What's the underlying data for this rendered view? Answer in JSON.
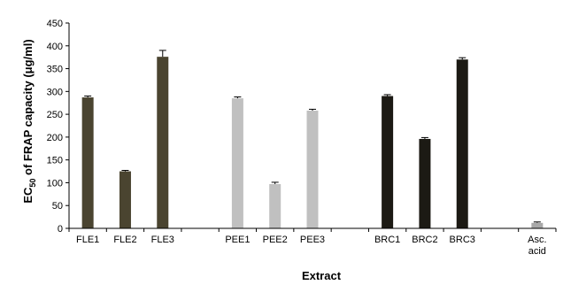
{
  "chart_data": {
    "type": "bar",
    "categories": [
      "FLE1",
      "FLE2",
      "FLE3",
      "PEE1",
      "PEE2",
      "PEE3",
      "BRC1",
      "BRC2",
      "BRC3",
      "Asc. acid"
    ],
    "category_lines": [
      [
        "FLE1"
      ],
      [
        "FLE2"
      ],
      [
        "FLE3"
      ],
      [
        "PEE1"
      ],
      [
        "PEE2"
      ],
      [
        "PEE3"
      ],
      [
        "BRC1"
      ],
      [
        "BRC2"
      ],
      [
        "BRC3"
      ],
      [
        "Asc.",
        "acid"
      ]
    ],
    "groups": [
      [
        0,
        1,
        2
      ],
      [
        3,
        4,
        5
      ],
      [
        6,
        7,
        8
      ],
      [
        9
      ]
    ],
    "values": [
      287,
      125,
      376,
      285,
      97,
      258,
      290,
      196,
      370,
      12
    ],
    "errors": [
      3,
      2,
      14,
      3,
      4,
      3,
      3,
      3,
      4,
      2
    ],
    "colors": [
      "#4a4430",
      "#4a4430",
      "#4a4430",
      "#c0c0c0",
      "#c0c0c0",
      "#c0c0c0",
      "#1c1a14",
      "#1c1a14",
      "#1c1a14",
      "#a8a8a8"
    ],
    "xlabel": "Extract",
    "ylabel_main": "EC",
    "ylabel_sub": "50",
    "ylabel_rest": " of  FRAP capacity (μg/ml)",
    "ylim": [
      0,
      450
    ],
    "yticks": [
      0,
      50,
      100,
      150,
      200,
      250,
      300,
      350,
      400,
      450
    ],
    "grid": false,
    "legend": "none"
  }
}
